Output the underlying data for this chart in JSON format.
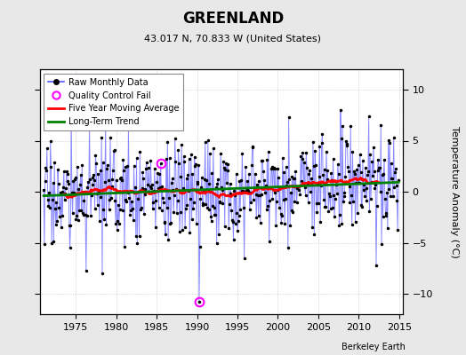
{
  "title": "GREENLAND",
  "subtitle": "43.017 N, 70.833 W (United States)",
  "ylabel": "Temperature Anomaly (°C)",
  "watermark": "Berkeley Earth",
  "xlim": [
    1970.5,
    2015.5
  ],
  "ylim": [
    -12,
    12
  ],
  "yticks": [
    -10,
    -5,
    0,
    5,
    10
  ],
  "xticks": [
    1975,
    1980,
    1985,
    1990,
    1995,
    2000,
    2005,
    2010,
    2015
  ],
  "bg_color": "#e8e8e8",
  "plot_bg_color": "#ffffff",
  "seed": 17
}
